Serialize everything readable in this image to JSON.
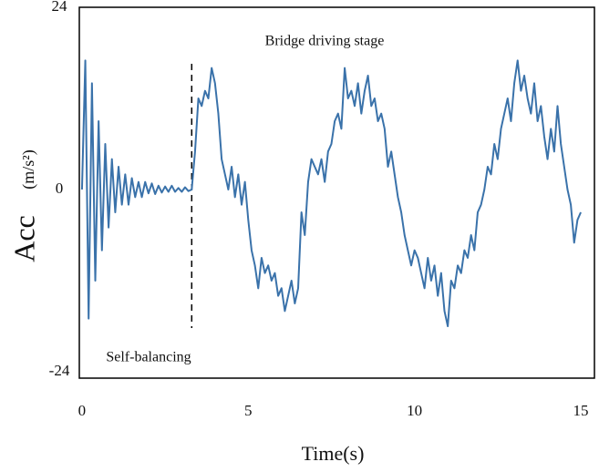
{
  "chart_data": {
    "type": "line",
    "xlabel": "Time(s)",
    "ylabel": "Acc",
    "yunit": "(m/s²)",
    "annotations": [
      "Bridge driving stage",
      "Self-balancing"
    ],
    "marker_x": 3.3,
    "xlim": [
      -0.08,
      15.41
    ],
    "ylim": [
      -24.84,
      24
    ],
    "xticks": [
      0,
      5,
      10,
      15
    ],
    "yticks": [
      24,
      0,
      -24
    ],
    "grid": false,
    "series": [
      {
        "color": "#3a72aa",
        "x": [
          0,
          0.1,
          0.2,
          0.3,
          0.4,
          0.5,
          0.6,
          0.7,
          0.8,
          0.9,
          1,
          1.1,
          1.2,
          1.3,
          1.4,
          1.5,
          1.6,
          1.7,
          1.8,
          1.9,
          2,
          2.1,
          2.2,
          2.3,
          2.4,
          2.5,
          2.6,
          2.7,
          2.8,
          2.9,
          3,
          3.1,
          3.2,
          3.3,
          3.4,
          3.5,
          3.6,
          3.7,
          3.8,
          3.9,
          4,
          4.1,
          4.2,
          4.3,
          4.4,
          4.5,
          4.6,
          4.7,
          4.8,
          4.9,
          5,
          5.1,
          5.2,
          5.3,
          5.4,
          5.5,
          5.6,
          5.7,
          5.8,
          5.9,
          6,
          6.1,
          6.2,
          6.3,
          6.4,
          6.5,
          6.6,
          6.7,
          6.8,
          6.9,
          7,
          7.1,
          7.2,
          7.3,
          7.4,
          7.5,
          7.6,
          7.7,
          7.8,
          7.9,
          8,
          8.1,
          8.2,
          8.3,
          8.4,
          8.5,
          8.6,
          8.7,
          8.8,
          8.9,
          9,
          9.1,
          9.2,
          9.3,
          9.4,
          9.5,
          9.6,
          9.7,
          9.8,
          9.9,
          10,
          10.1,
          10.2,
          10.3,
          10.4,
          10.5,
          10.6,
          10.7,
          10.8,
          10.9,
          11,
          11.1,
          11.2,
          11.3,
          11.4,
          11.5,
          11.6,
          11.7,
          11.8,
          11.9,
          12,
          12.1,
          12.2,
          12.3,
          12.4,
          12.5,
          12.6,
          12.7,
          12.8,
          12.9,
          13,
          13.1,
          13.2,
          13.3,
          13.4,
          13.5,
          13.6,
          13.7,
          13.8,
          13.9,
          14,
          14.1,
          14.2,
          14.3,
          14.4,
          14.5,
          14.6,
          14.7,
          14.8,
          14.9,
          15
        ],
        "values": [
          0,
          17,
          -17,
          14,
          -12,
          9,
          -8,
          6,
          -5,
          4,
          -3,
          3,
          -2,
          2,
          -2,
          1.5,
          -1,
          1,
          -1,
          1,
          -0.5,
          0.8,
          -0.6,
          0.5,
          -0.4,
          0.4,
          -0.3,
          0.5,
          -0.3,
          0.2,
          -0.3,
          0.3,
          -0.2,
          0,
          5,
          12,
          11,
          13,
          12,
          16,
          14,
          10,
          4,
          2,
          0,
          3,
          -1,
          2,
          -2,
          1,
          -4,
          -8,
          -10,
          -13,
          -9,
          -11,
          -10,
          -12,
          -11,
          -14,
          -13,
          -16,
          -14,
          -12,
          -15,
          -13,
          -3,
          -6,
          1,
          4,
          3,
          2,
          4,
          1,
          5,
          6,
          9,
          10,
          8,
          16,
          12,
          13,
          11,
          14,
          10,
          13,
          15,
          11,
          12,
          9,
          10,
          8,
          3,
          5,
          2,
          -1,
          -3,
          -6,
          -8,
          -10,
          -8,
          -9,
          -11,
          -13,
          -9,
          -12,
          -10,
          -14,
          -11,
          -16,
          -18,
          -12,
          -13,
          -10,
          -11,
          -8,
          -9,
          -6,
          -8,
          -3,
          -2,
          0,
          3,
          2,
          6,
          4,
          8,
          10,
          12,
          9,
          14,
          17,
          13,
          15,
          12,
          10,
          14,
          9,
          11,
          7,
          4,
          8,
          5,
          11,
          6,
          3,
          0,
          -2,
          -7,
          -4,
          -3
        ]
      }
    ]
  }
}
